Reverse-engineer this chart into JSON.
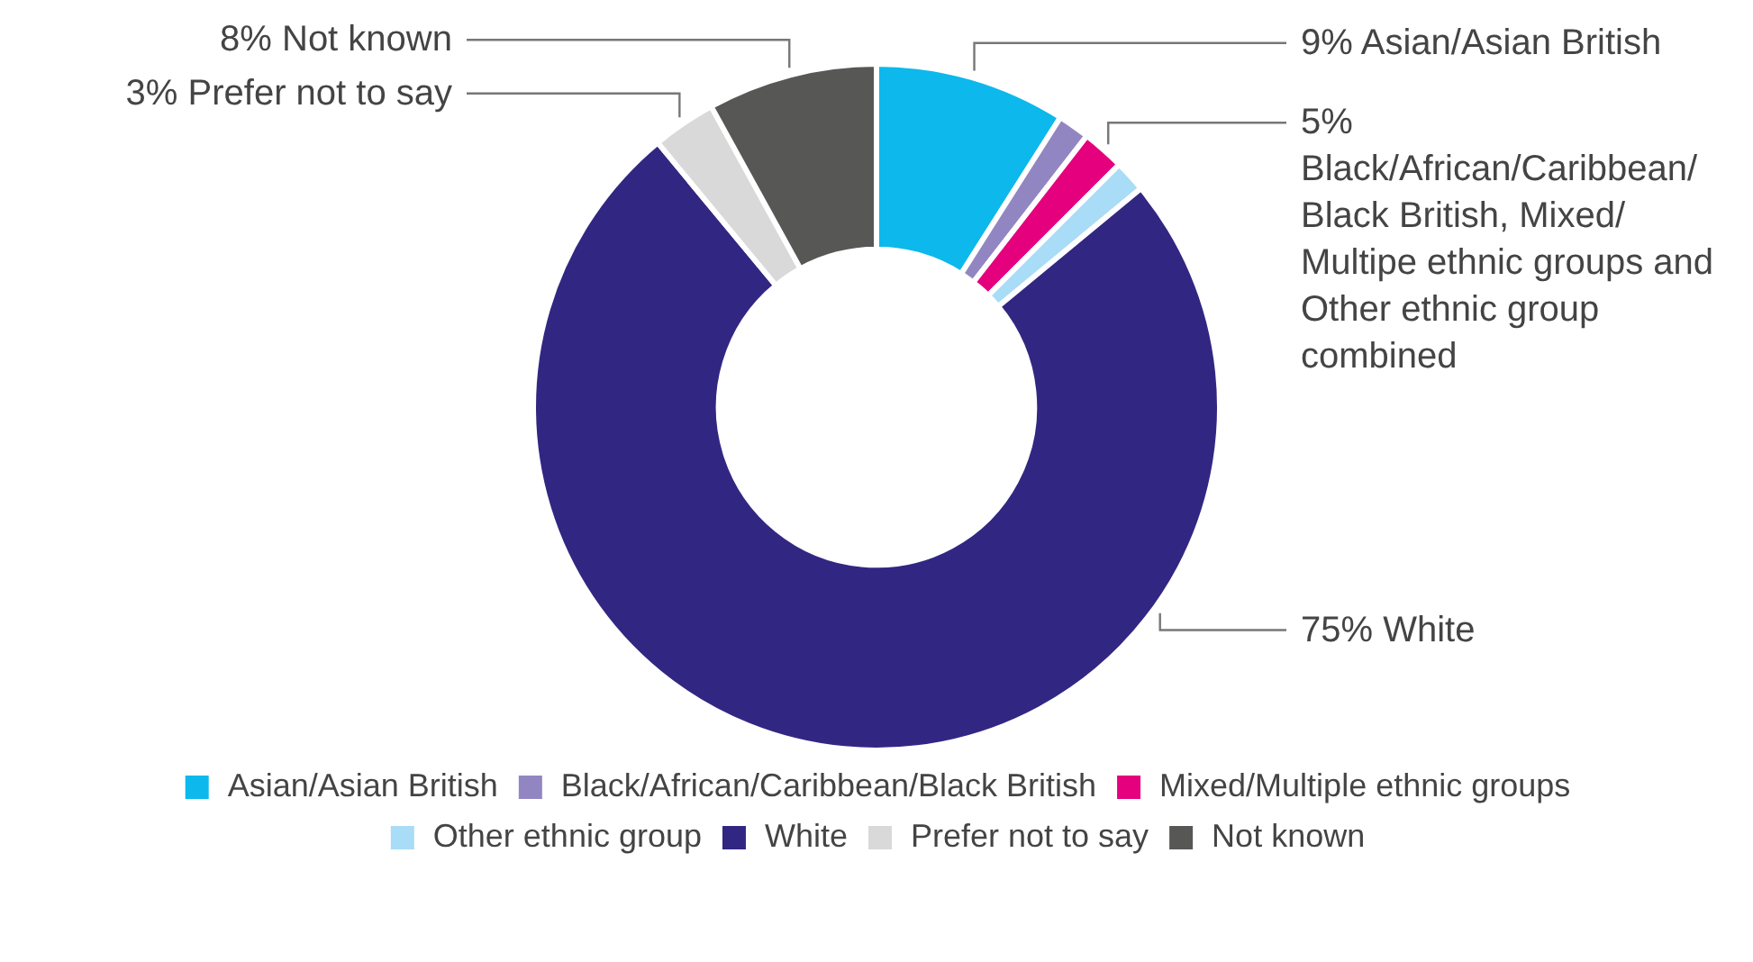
{
  "chart_data": {
    "type": "donut",
    "categories": [
      "Asian/Asian British",
      "Black/African/Caribbean/Black British",
      "Mixed/Multiple ethnic groups",
      "Other ethnic group",
      "White",
      "Prefer not to say",
      "Not known"
    ],
    "values": [
      9,
      1.5,
      2,
      1.5,
      75,
      3,
      8
    ],
    "colors": [
      "#0db8ec",
      "#9286c2",
      "#e5007d",
      "#a9dcf6",
      "#312782",
      "#d9d9d9",
      "#575756"
    ],
    "legend": "bottom",
    "annotations": [
      {
        "text": "9% Asian/Asian British",
        "x": "Asian/Asian British"
      },
      {
        "text": "5% Black/African/Caribbean/ Black British, Mixed/ Multipe ethnic groups and Other ethnic group combined",
        "x": "Mixed/Multiple ethnic groups"
      },
      {
        "text": "75% White",
        "x": "White"
      },
      {
        "text": "3% Prefer not to say",
        "x": "Prefer not to say"
      },
      {
        "text": "8% Not known",
        "x": "Not known"
      }
    ]
  }
}
